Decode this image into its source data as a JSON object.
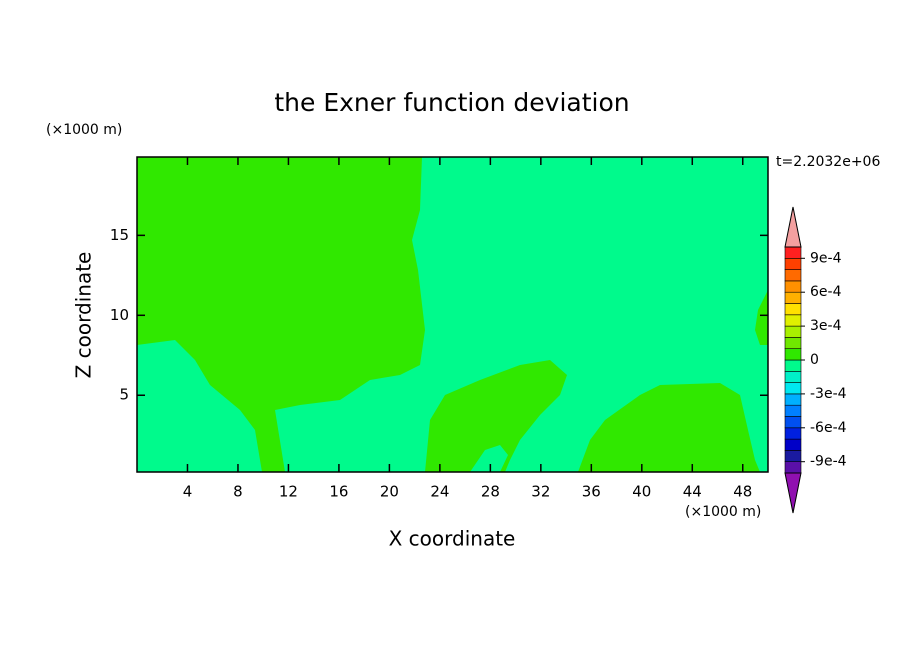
{
  "chart_data": {
    "type": "contour",
    "title": "the Exner function deviation",
    "xlabel": "X coordinate",
    "ylabel": "Z coordinate",
    "x_unit": "(×1000 m)",
    "y_unit": "(×1000 m)",
    "time_label": "t=2.2032e+06",
    "xlim": [
      0,
      50
    ],
    "ylim": [
      0.2,
      19.9
    ],
    "xticks": [
      4,
      8,
      12,
      16,
      20,
      24,
      28,
      32,
      36,
      40,
      44,
      48
    ],
    "yticks": [
      5,
      10,
      15
    ],
    "colorbar": {
      "levels": [
        -0.001,
        -0.0009,
        -0.0008,
        -0.0007,
        -0.0006,
        -0.0005,
        -0.0004,
        -0.0003,
        -0.0002,
        -0.0001,
        0,
        0.0001,
        0.0002,
        0.0003,
        0.0004,
        0.0005,
        0.0006,
        0.0007,
        0.0008,
        0.0009,
        0.001
      ],
      "colors": [
        "#5a10a8",
        "#1a1aa0",
        "#0000c8",
        "#0020e0",
        "#0050f0",
        "#0080ff",
        "#00b0ff",
        "#00e8f0",
        "#00f0c8",
        "#00fa8c",
        "#30e800",
        "#70e800",
        "#a8f000",
        "#e0f000",
        "#ffe000",
        "#ffb000",
        "#ff9000",
        "#ff6a00",
        "#ff4000",
        "#ff2020"
      ],
      "over_color": "#f4a0a0",
      "under_color": "#9010b0",
      "ticks": [
        {
          "value": -0.0009,
          "label": "-9e-4"
        },
        {
          "value": -0.0006,
          "label": "-6e-4"
        },
        {
          "value": -0.0003,
          "label": "-3e-4"
        },
        0,
        {
          "value": 0.0003,
          "label": "3e-4"
        },
        {
          "value": 0.0006,
          "label": "6e-4"
        },
        {
          "value": 0.0009,
          "label": "9e-4"
        }
      ]
    }
  }
}
